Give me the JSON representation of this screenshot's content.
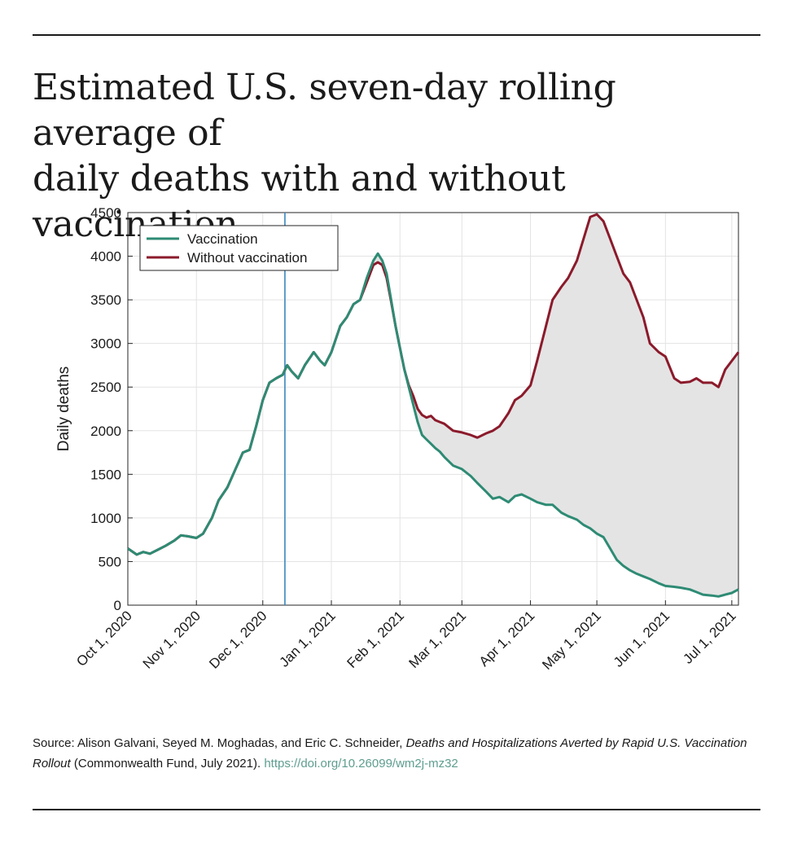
{
  "title_line1": "Estimated U.S. seven-day rolling average of",
  "title_line2": "daily deaths with and without vaccination",
  "source": {
    "prefix": "Source: Alison Galvani, Seyed M. Moghadas, and Eric C. Schneider, ",
    "italic": "Deaths and Hospitalizations Averted by Rapid U.S. Vaccination Rollout",
    "suffix": " (Commonwealth Fund, July 2021). ",
    "doi": "https://doi.org/10.26099/wm2j-mz32"
  },
  "colors": {
    "vaccination": "#2e8b74",
    "without_vaccination": "#8b1a2b",
    "fill": "#e4e4e4",
    "marker_line": "#3a87c0"
  },
  "chart_data": {
    "type": "line",
    "title": "Estimated U.S. seven-day rolling average of daily deaths with and without vaccination",
    "xlabel": "",
    "ylabel": "Daily deaths",
    "ylim": [
      0,
      4500
    ],
    "yticks": [
      0,
      500,
      1000,
      1500,
      2000,
      2500,
      3000,
      3500,
      4000,
      4500
    ],
    "xlim": [
      0,
      276
    ],
    "xticks": [
      {
        "day": 0,
        "label": "Oct 1, 2020"
      },
      {
        "day": 31,
        "label": "Nov 1, 2020"
      },
      {
        "day": 61,
        "label": "Dec 1, 2020"
      },
      {
        "day": 92,
        "label": "Jan 1, 2021"
      },
      {
        "day": 123,
        "label": "Feb 1, 2021"
      },
      {
        "day": 151,
        "label": "Mar 1, 2021"
      },
      {
        "day": 182,
        "label": "Apr 1, 2021"
      },
      {
        "day": 212,
        "label": "May 1, 2021"
      },
      {
        "day": 243,
        "label": "Jun 1, 2021"
      },
      {
        "day": 273,
        "label": "Jul 1, 2021"
      }
    ],
    "vertical_marker_day": 71,
    "grid": true,
    "legend": "top-left",
    "series": [
      {
        "name": "Vaccination",
        "x": [
          0,
          4,
          7,
          10,
          14,
          17,
          21,
          24,
          27,
          31,
          34,
          38,
          41,
          45,
          49,
          52,
          55,
          58,
          61,
          64,
          67,
          70,
          72,
          74,
          77,
          80,
          84,
          87,
          89,
          92,
          96,
          99,
          102,
          105,
          108,
          111,
          113,
          115,
          117,
          119,
          121,
          123,
          125,
          127,
          129,
          131,
          133,
          135,
          137,
          139,
          141,
          143,
          147,
          151,
          155,
          158,
          162,
          165,
          168,
          172,
          175,
          178,
          182,
          185,
          189,
          192,
          196,
          199,
          203,
          206,
          209,
          212,
          215,
          218,
          221,
          224,
          227,
          230,
          233,
          236,
          240,
          243,
          247,
          250,
          254,
          257,
          260,
          264,
          267,
          270,
          273,
          276
        ],
        "values": [
          650,
          580,
          610,
          590,
          640,
          680,
          740,
          800,
          790,
          770,
          820,
          1000,
          1200,
          1350,
          1580,
          1750,
          1780,
          2050,
          2350,
          2550,
          2600,
          2640,
          2750,
          2680,
          2600,
          2750,
          2900,
          2800,
          2750,
          2900,
          3200,
          3300,
          3450,
          3500,
          3750,
          3950,
          4030,
          3950,
          3800,
          3500,
          3200,
          2950,
          2700,
          2500,
          2300,
          2100,
          1950,
          1900,
          1850,
          1800,
          1760,
          1700,
          1600,
          1560,
          1480,
          1400,
          1300,
          1220,
          1240,
          1180,
          1250,
          1270,
          1220,
          1180,
          1150,
          1150,
          1060,
          1020,
          980,
          920,
          880,
          820,
          780,
          650,
          520,
          450,
          400,
          360,
          330,
          300,
          250,
          220,
          210,
          200,
          180,
          150,
          120,
          110,
          100,
          120,
          140,
          180
        ]
      },
      {
        "name": "Without vaccination",
        "x": [
          0,
          4,
          7,
          10,
          14,
          17,
          21,
          24,
          27,
          31,
          34,
          38,
          41,
          45,
          49,
          52,
          55,
          58,
          61,
          64,
          67,
          70,
          72,
          74,
          77,
          80,
          84,
          87,
          89,
          92,
          96,
          99,
          102,
          105,
          108,
          111,
          113,
          115,
          117,
          119,
          121,
          123,
          125,
          127,
          129,
          131,
          133,
          135,
          137,
          139,
          141,
          143,
          147,
          151,
          155,
          158,
          162,
          165,
          168,
          172,
          175,
          178,
          182,
          185,
          189,
          192,
          196,
          199,
          203,
          206,
          209,
          212,
          215,
          218,
          221,
          224,
          227,
          230,
          233,
          236,
          240,
          243,
          247,
          250,
          254,
          257,
          260,
          264,
          267,
          270,
          273,
          276
        ],
        "values": [
          650,
          580,
          610,
          590,
          640,
          680,
          740,
          800,
          790,
          770,
          820,
          1000,
          1200,
          1350,
          1580,
          1750,
          1780,
          2050,
          2350,
          2550,
          2600,
          2640,
          2750,
          2680,
          2600,
          2750,
          2900,
          2800,
          2750,
          2900,
          3200,
          3300,
          3450,
          3500,
          3700,
          3900,
          3930,
          3900,
          3750,
          3480,
          3200,
          2950,
          2700,
          2520,
          2400,
          2250,
          2180,
          2150,
          2170,
          2120,
          2100,
          2080,
          2000,
          1980,
          1950,
          1920,
          1970,
          2000,
          2050,
          2200,
          2350,
          2400,
          2520,
          2800,
          3200,
          3500,
          3650,
          3750,
          3950,
          4200,
          4450,
          4480,
          4400,
          4200,
          4000,
          3800,
          3700,
          3500,
          3300,
          3000,
          2900,
          2850,
          2600,
          2550,
          2560,
          2600,
          2550,
          2550,
          2500,
          2700,
          2800,
          2900
        ]
      }
    ]
  }
}
